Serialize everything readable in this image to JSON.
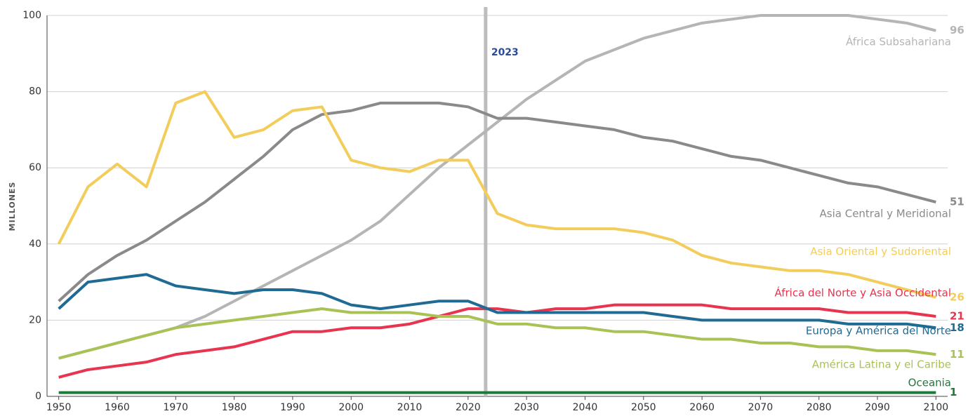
{
  "chart_data": {
    "type": "line",
    "y_label": "MILLONES",
    "x": [
      1950,
      1955,
      1960,
      1965,
      1970,
      1975,
      1980,
      1985,
      1990,
      1995,
      2000,
      2005,
      2010,
      2015,
      2020,
      2025,
      2030,
      2035,
      2040,
      2045,
      2050,
      2055,
      2060,
      2065,
      2070,
      2075,
      2080,
      2085,
      2090,
      2095,
      2100
    ],
    "xlim": [
      1948,
      2102
    ],
    "xticks": [
      1950,
      1960,
      1970,
      1980,
      1990,
      2000,
      2010,
      2020,
      2030,
      2040,
      2050,
      2060,
      2070,
      2080,
      2090,
      2100
    ],
    "ylim": [
      0,
      100
    ],
    "yticks": [
      0,
      20,
      40,
      60,
      80,
      100
    ],
    "grid": true,
    "marker_year": 2023,
    "series": [
      {
        "name": "África Subsahariana",
        "color": "#b5b5b5",
        "values": [
          10,
          12,
          14,
          16,
          18,
          21,
          25,
          29,
          33,
          37,
          41,
          46,
          53,
          60,
          66,
          72,
          78,
          83,
          88,
          91,
          94,
          96,
          98,
          99,
          100,
          100,
          100,
          100,
          99,
          98,
          96
        ]
      },
      {
        "name": "Asia Central y Meridional",
        "color": "#8a8a8a",
        "values": [
          25,
          32,
          37,
          41,
          46,
          51,
          57,
          63,
          70,
          74,
          75,
          77,
          77,
          77,
          76,
          73,
          73,
          72,
          71,
          70,
          68,
          67,
          65,
          63,
          62,
          60,
          58,
          56,
          55,
          53,
          51
        ]
      },
      {
        "name": "Asia Oriental y Sudoriental",
        "color": "#f2cd5c",
        "values": [
          40,
          55,
          61,
          55,
          77,
          80,
          68,
          70,
          75,
          76,
          62,
          60,
          59,
          62,
          62,
          48,
          45,
          44,
          44,
          44,
          43,
          41,
          37,
          35,
          34,
          33,
          33,
          32,
          30,
          28,
          26
        ]
      },
      {
        "name": "África del Norte y Asia Occidental",
        "color": "#e8344e",
        "values": [
          5,
          7,
          8,
          9,
          11,
          12,
          13,
          15,
          17,
          17,
          18,
          18,
          19,
          21,
          23,
          23,
          22,
          23,
          23,
          24,
          24,
          24,
          24,
          23,
          23,
          23,
          23,
          22,
          22,
          22,
          21
        ]
      },
      {
        "name": "Europa y América del Norte",
        "color": "#1f6b94",
        "values": [
          23,
          30,
          31,
          32,
          29,
          28,
          27,
          28,
          28,
          27,
          24,
          23,
          24,
          25,
          25,
          22,
          22,
          22,
          22,
          22,
          22,
          21,
          20,
          20,
          20,
          20,
          20,
          19,
          19,
          19,
          18
        ]
      },
      {
        "name": "América Latina y el Caribe",
        "color": "#a8c256",
        "values": [
          10,
          12,
          14,
          16,
          18,
          19,
          20,
          21,
          22,
          23,
          22,
          22,
          22,
          21,
          21,
          19,
          19,
          18,
          18,
          17,
          17,
          16,
          15,
          15,
          14,
          14,
          13,
          13,
          12,
          12,
          11
        ]
      },
      {
        "name": "Oceania",
        "color": "#1f7a3a",
        "values": [
          1,
          1,
          1,
          1,
          1,
          1,
          1,
          1,
          1,
          1,
          1,
          1,
          1,
          1,
          1,
          1,
          1,
          1,
          1,
          1,
          1,
          1,
          1,
          1,
          1,
          1,
          1,
          1,
          1,
          1,
          1
        ]
      }
    ]
  }
}
